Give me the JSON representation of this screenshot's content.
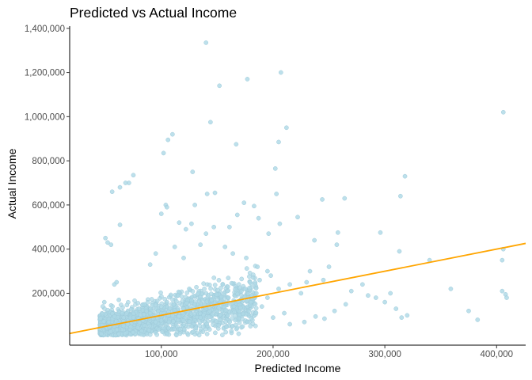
{
  "chart_data": {
    "type": "scatter",
    "title": "Predicted vs Actual Income",
    "xlabel": "Predicted Income",
    "ylabel": "Actual Income",
    "xlim": [
      18000,
      426000
    ],
    "ylim": [
      -35000,
      1410000
    ],
    "x_ticks": [
      {
        "value": 100000,
        "label": "100,000"
      },
      {
        "value": 200000,
        "label": "200,000"
      },
      {
        "value": 300000,
        "label": "300,000"
      },
      {
        "value": 400000,
        "label": "400,000"
      }
    ],
    "y_ticks": [
      {
        "value": 200000,
        "label": "200,000"
      },
      {
        "value": 400000,
        "label": "400,000"
      },
      {
        "value": 600000,
        "label": "600,000"
      },
      {
        "value": 800000,
        "label": "800,000"
      },
      {
        "value": 1000000,
        "label": "1,000,000"
      },
      {
        "value": 1200000,
        "label": "1,200,000"
      },
      {
        "value": 1400000,
        "label": "1,400,000"
      }
    ],
    "grid": false,
    "legend": "none",
    "point_color": "#add8e6",
    "line_color": "#ffa500",
    "fit_line": {
      "x": [
        18000,
        426000
      ],
      "y": [
        18000,
        426000
      ]
    },
    "points": [
      [
        140000,
        1335000
      ],
      [
        152000,
        1140000
      ],
      [
        177000,
        1170000
      ],
      [
        207000,
        1200000
      ],
      [
        406000,
        1020000
      ],
      [
        144000,
        975000
      ],
      [
        110000,
        920000
      ],
      [
        106000,
        895000
      ],
      [
        102000,
        835000
      ],
      [
        167000,
        875000
      ],
      [
        212000,
        950000
      ],
      [
        205000,
        885000
      ],
      [
        202000,
        765000
      ],
      [
        128000,
        750000
      ],
      [
        75000,
        735000
      ],
      [
        68000,
        700000
      ],
      [
        71000,
        700000
      ],
      [
        56000,
        660000
      ],
      [
        63000,
        680000
      ],
      [
        104000,
        600000
      ],
      [
        105000,
        590000
      ],
      [
        130000,
        600000
      ],
      [
        141000,
        650000
      ],
      [
        148000,
        655000
      ],
      [
        174000,
        610000
      ],
      [
        183000,
        595000
      ],
      [
        203000,
        650000
      ],
      [
        244000,
        625000
      ],
      [
        264000,
        630000
      ],
      [
        314000,
        640000
      ],
      [
        318000,
        730000
      ],
      [
        100000,
        560000
      ],
      [
        116000,
        520000
      ],
      [
        127000,
        515000
      ],
      [
        147000,
        500000
      ],
      [
        161000,
        500000
      ],
      [
        168000,
        555000
      ],
      [
        187000,
        540000
      ],
      [
        206000,
        515000
      ],
      [
        222000,
        545000
      ],
      [
        63000,
        510000
      ],
      [
        50000,
        450000
      ],
      [
        52000,
        430000
      ],
      [
        55000,
        420000
      ],
      [
        122000,
        490000
      ],
      [
        140000,
        470000
      ],
      [
        196000,
        470000
      ],
      [
        258000,
        475000
      ],
      [
        296000,
        475000
      ],
      [
        237000,
        440000
      ],
      [
        257000,
        420000
      ],
      [
        340000,
        350000
      ],
      [
        313000,
        390000
      ],
      [
        406000,
        400000
      ],
      [
        405000,
        350000
      ],
      [
        359000,
        220000
      ],
      [
        375000,
        120000
      ],
      [
        383000,
        80000
      ],
      [
        405000,
        210000
      ],
      [
        408000,
        195000
      ],
      [
        409000,
        180000
      ],
      [
        280000,
        240000
      ],
      [
        285000,
        190000
      ],
      [
        292000,
        180000
      ],
      [
        300000,
        160000
      ],
      [
        305000,
        200000
      ],
      [
        310000,
        130000
      ],
      [
        315000,
        90000
      ],
      [
        320000,
        100000
      ],
      [
        270000,
        210000
      ],
      [
        265000,
        150000
      ],
      [
        255000,
        120000
      ],
      [
        246000,
        85000
      ],
      [
        238000,
        95000
      ],
      [
        228000,
        70000
      ],
      [
        215000,
        60000
      ],
      [
        210000,
        110000
      ],
      [
        195000,
        300000
      ],
      [
        198000,
        280000
      ],
      [
        186000,
        320000
      ],
      [
        176000,
        360000
      ],
      [
        164000,
        380000
      ],
      [
        157000,
        410000
      ],
      [
        135000,
        420000
      ],
      [
        112000,
        410000
      ],
      [
        95000,
        380000
      ],
      [
        90000,
        330000
      ],
      [
        120000,
        360000
      ],
      [
        230000,
        250000
      ],
      [
        233000,
        300000
      ],
      [
        245000,
        260000
      ],
      [
        250000,
        320000
      ],
      [
        188000,
        260000
      ],
      [
        205000,
        220000
      ],
      [
        215000,
        240000
      ],
      [
        225000,
        200000
      ],
      [
        60000,
        250000
      ],
      [
        58000,
        240000
      ],
      [
        62000,
        170000
      ],
      [
        49000,
        160000
      ],
      [
        45000,
        40000
      ],
      [
        47000,
        55000
      ],
      [
        53000,
        70000
      ],
      [
        58000,
        95000
      ],
      [
        65000,
        110000
      ],
      [
        70000,
        60000
      ],
      [
        75000,
        90000
      ],
      [
        80000,
        130000
      ],
      [
        85000,
        150000
      ],
      [
        90000,
        110000
      ],
      [
        95000,
        70000
      ],
      [
        100000,
        140000
      ],
      [
        105000,
        160000
      ],
      [
        110000,
        100000
      ],
      [
        115000,
        190000
      ],
      [
        120000,
        130000
      ],
      [
        125000,
        220000
      ],
      [
        130000,
        150000
      ],
      [
        135000,
        90000
      ],
      [
        140000,
        200000
      ],
      [
        145000,
        170000
      ],
      [
        150000,
        120000
      ],
      [
        155000,
        240000
      ],
      [
        160000,
        180000
      ],
      [
        165000,
        140000
      ],
      [
        170000,
        100000
      ],
      [
        175000,
        220000
      ],
      [
        180000,
        160000
      ],
      [
        185000,
        200000
      ],
      [
        190000,
        140000
      ],
      [
        195000,
        180000
      ],
      [
        200000,
        90000
      ]
    ]
  }
}
